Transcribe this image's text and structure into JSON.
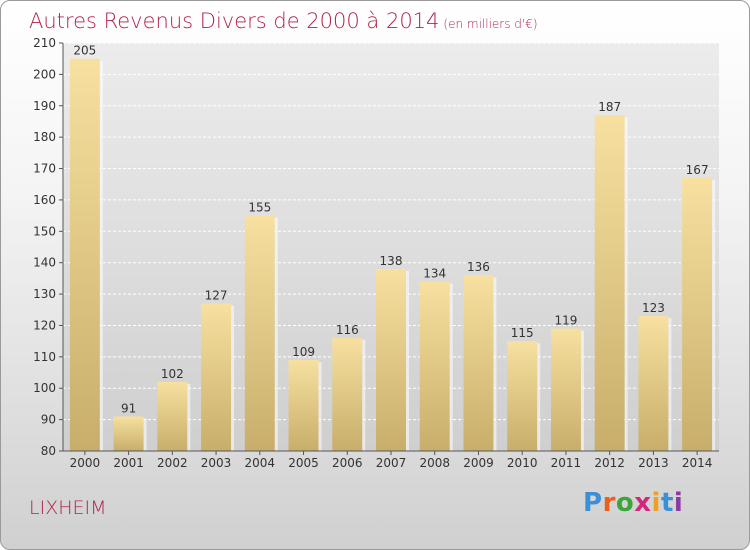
{
  "title": "Autres Revenus Divers de 2000 à 2014",
  "subtitle": "(en milliers d'€)",
  "city": "LIXHEIM",
  "logo": {
    "text": "Proxiti",
    "colors": [
      "#3a8fd6",
      "#e8621e",
      "#3aa53a",
      "#d4267a",
      "#f0a020",
      "#3a8fd6",
      "#8a3aa0"
    ]
  },
  "colors": {
    "title": "#b0244a",
    "bar_light": "#f7e0a0",
    "bar_dark": "#c8ae6a"
  },
  "chart_data": {
    "type": "bar",
    "title": "Autres Revenus Divers de 2000 à 2014",
    "xlabel": "",
    "ylabel": "",
    "categories": [
      "2000",
      "2001",
      "2002",
      "2003",
      "2004",
      "2005",
      "2006",
      "2007",
      "2008",
      "2009",
      "2010",
      "2011",
      "2012",
      "2013",
      "2014"
    ],
    "values": [
      205,
      91,
      102,
      127,
      155,
      109,
      116,
      138,
      134,
      136,
      115,
      119,
      187,
      123,
      167
    ],
    "ylim": [
      80,
      210
    ],
    "yticks": [
      80,
      90,
      100,
      110,
      120,
      130,
      140,
      150,
      160,
      170,
      180,
      190,
      200,
      210
    ],
    "grid": true,
    "data_labels": true
  }
}
